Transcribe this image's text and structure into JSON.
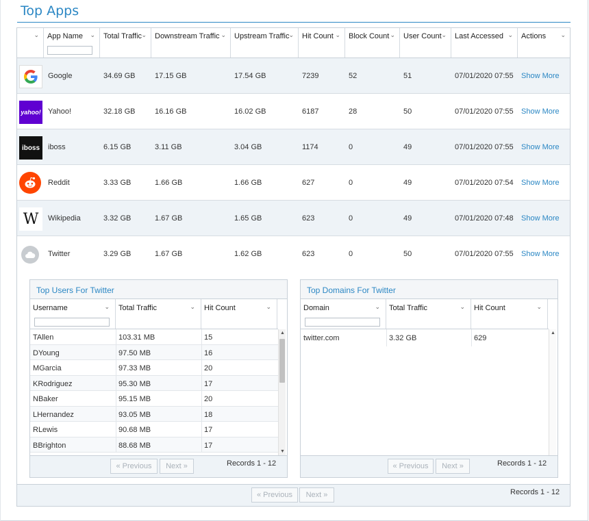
{
  "title": "Top Apps",
  "main_table": {
    "columns": [
      "",
      "App Name",
      "Total Traffic",
      "Downstream Traffic",
      "Upstream Traffic",
      "Hit Count",
      "Block Count",
      "User Count",
      "Last Accessed",
      "Actions"
    ],
    "rows": [
      {
        "logo": "google-logo",
        "name": "Google",
        "total": "34.69 GB",
        "down": "17.15 GB",
        "up": "17.54 GB",
        "hits": "7239",
        "blocks": "52",
        "users": "51",
        "last": "07/01/2020 07:55",
        "action": "Show More"
      },
      {
        "logo": "yahoo-logo",
        "name": "Yahoo!",
        "total": "32.18 GB",
        "down": "16.16 GB",
        "up": "16.02 GB",
        "hits": "6187",
        "blocks": "28",
        "users": "50",
        "last": "07/01/2020 07:55",
        "action": "Show More"
      },
      {
        "logo": "iboss-logo",
        "name": "iboss",
        "total": "6.15 GB",
        "down": "3.11 GB",
        "up": "3.04 GB",
        "hits": "1174",
        "blocks": "0",
        "users": "49",
        "last": "07/01/2020 07:55",
        "action": "Show More"
      },
      {
        "logo": "reddit-logo",
        "name": "Reddit",
        "total": "3.33 GB",
        "down": "1.66 GB",
        "up": "1.66 GB",
        "hits": "627",
        "blocks": "0",
        "users": "49",
        "last": "07/01/2020 07:54",
        "action": "Show More"
      },
      {
        "logo": "wikipedia-logo",
        "name": "Wikipedia",
        "total": "3.32 GB",
        "down": "1.67 GB",
        "up": "1.65 GB",
        "hits": "623",
        "blocks": "0",
        "users": "49",
        "last": "07/01/2020 07:48",
        "action": "Show More"
      },
      {
        "logo": "cloud-icon",
        "name": "Twitter",
        "total": "3.29 GB",
        "down": "1.67 GB",
        "up": "1.62 GB",
        "hits": "623",
        "blocks": "0",
        "users": "50",
        "last": "07/01/2020 07:55",
        "action": "Show More"
      }
    ],
    "logo_texts": {
      "yahoo": "yahoo!",
      "iboss": "iboss",
      "wiki": "W"
    },
    "pager": {
      "prev": "« Previous",
      "next": "Next »",
      "records": "Records 1 - 12"
    }
  },
  "users_panel": {
    "title": "Top Users For Twitter",
    "columns": [
      "Username",
      "Total Traffic",
      "Hit Count"
    ],
    "rows": [
      {
        "user": "TAllen",
        "traffic": "103.31 MB",
        "hits": "15"
      },
      {
        "user": "DYoung",
        "traffic": "97.50 MB",
        "hits": "16"
      },
      {
        "user": "MGarcia",
        "traffic": "97.33 MB",
        "hits": "20"
      },
      {
        "user": "KRodriguez",
        "traffic": "95.30 MB",
        "hits": "17"
      },
      {
        "user": "NBaker",
        "traffic": "95.15 MB",
        "hits": "20"
      },
      {
        "user": "LHernandez",
        "traffic": "93.05 MB",
        "hits": "18"
      },
      {
        "user": "RLewis",
        "traffic": "90.68 MB",
        "hits": "17"
      },
      {
        "user": "BBrighton",
        "traffic": "88.68 MB",
        "hits": "17"
      }
    ],
    "pager": {
      "prev": "« Previous",
      "next": "Next »",
      "records": "Records 1 - 12"
    }
  },
  "domains_panel": {
    "title": "Top Domains For Twitter",
    "columns": [
      "Domain",
      "Total Traffic",
      "Hit Count"
    ],
    "rows": [
      {
        "domain": "twitter.com",
        "traffic": "3.32 GB",
        "hits": "629"
      }
    ],
    "pager": {
      "prev": "« Previous",
      "next": "Next »",
      "records": "Records 1 - 12"
    }
  },
  "colors": {
    "accent": "#2b87c4",
    "row_alt": "#eef3f7",
    "border": "#c8d0d8"
  }
}
